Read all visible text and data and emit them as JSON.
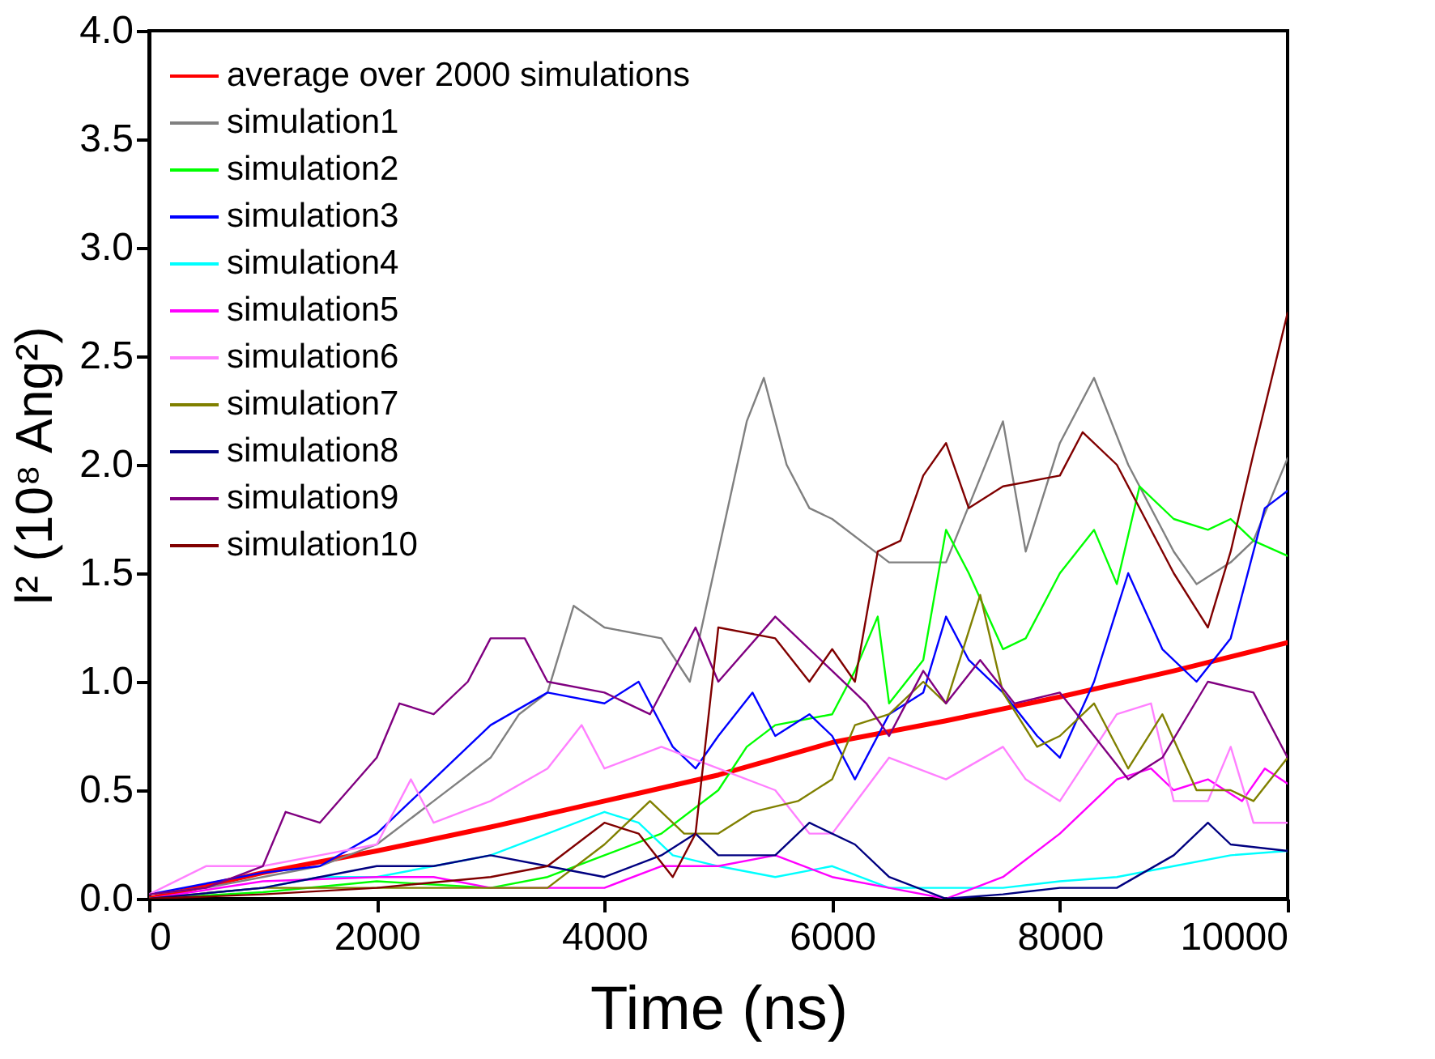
{
  "chart_data": {
    "type": "line",
    "xlabel": "Time (ns)",
    "ylabel": "l² (10⁸ Ang²)",
    "xlim": [
      0,
      10000
    ],
    "xticks": [
      0,
      2000,
      4000,
      6000,
      8000,
      10000
    ],
    "ylim": [
      0,
      4.0
    ],
    "yticks": [
      {
        "value": 0,
        "label": "0.0"
      },
      {
        "value": 0.5,
        "label": "0.5"
      },
      {
        "value": 1,
        "label": "1.0"
      },
      {
        "value": 1.5,
        "label": "1.5"
      },
      {
        "value": 2,
        "label": "2.0"
      },
      {
        "value": 2.5,
        "label": "2.5"
      },
      {
        "value": 3,
        "label": "3.0"
      },
      {
        "value": 3.5,
        "label": "3.5"
      },
      {
        "value": 4,
        "label": "4.0"
      }
    ],
    "grid": false,
    "legend": "top left",
    "marker": "none",
    "line_style": "solid",
    "series": [
      {
        "name": "average over 2000 simulations",
        "color": "#ff0000",
        "x": [
          0,
          1000,
          2000,
          3000,
          4000,
          5000,
          6000,
          7000,
          8000,
          9000,
          10000
        ],
        "values": [
          0,
          0.12,
          0.22,
          0.33,
          0.45,
          0.57,
          0.72,
          0.82,
          0.93,
          1.05,
          1.18
        ]
      },
      {
        "name": "simulation1",
        "color": "#808080",
        "x": [
          0,
          500,
          1000,
          1500,
          2000,
          2500,
          3000,
          3250,
          3500,
          3730,
          4000,
          4500,
          4750,
          5000,
          5250,
          5400,
          5600,
          5800,
          6000,
          6500,
          7000,
          7500,
          7700,
          8000,
          8300,
          8600,
          9000,
          9200,
          9500,
          9700,
          10000
        ],
        "values": [
          0.02,
          0.05,
          0.1,
          0.15,
          0.25,
          0.45,
          0.65,
          0.85,
          0.95,
          1.35,
          1.25,
          1.2,
          1.0,
          1.6,
          2.2,
          2.4,
          2.0,
          1.8,
          1.75,
          1.55,
          1.55,
          2.2,
          1.6,
          2.1,
          2.4,
          2.0,
          1.6,
          1.45,
          1.55,
          1.65,
          2.03
        ]
      },
      {
        "name": "simulation2",
        "color": "#00ff00",
        "x": [
          0,
          1000,
          2000,
          3000,
          3500,
          4000,
          4500,
          5000,
          5250,
          5500,
          6000,
          6200,
          6400,
          6500,
          6800,
          7000,
          7200,
          7500,
          7700,
          8000,
          8300,
          8500,
          8700,
          9000,
          9300,
          9500,
          9700,
          10000
        ],
        "values": [
          0,
          0.03,
          0.08,
          0.05,
          0.1,
          0.2,
          0.3,
          0.5,
          0.7,
          0.8,
          0.85,
          1.05,
          1.3,
          0.9,
          1.1,
          1.7,
          1.5,
          1.15,
          1.2,
          1.5,
          1.7,
          1.45,
          1.9,
          1.75,
          1.7,
          1.75,
          1.65,
          1.58
        ]
      },
      {
        "name": "simulation3",
        "color": "#0000ff",
        "x": [
          0,
          1000,
          1500,
          2000,
          2500,
          3000,
          3500,
          4000,
          4300,
          4600,
          4800,
          5000,
          5300,
          5500,
          5800,
          6000,
          6200,
          6500,
          6800,
          7000,
          7200,
          7500,
          7800,
          8000,
          8300,
          8600,
          8900,
          9200,
          9500,
          9800,
          10000
        ],
        "values": [
          0.02,
          0.12,
          0.15,
          0.3,
          0.55,
          0.8,
          0.95,
          0.9,
          1.0,
          0.7,
          0.6,
          0.75,
          0.95,
          0.75,
          0.85,
          0.75,
          0.55,
          0.85,
          0.95,
          1.3,
          1.1,
          0.95,
          0.75,
          0.65,
          1.0,
          1.5,
          1.15,
          1.0,
          1.2,
          1.8,
          1.88
        ]
      },
      {
        "name": "simulation4",
        "color": "#00ffff",
        "x": [
          0,
          1000,
          1500,
          2000,
          2500,
          3000,
          3500,
          4000,
          4300,
          4600,
          5000,
          5500,
          6000,
          6500,
          7000,
          7500,
          8000,
          8500,
          9000,
          9500,
          10000
        ],
        "values": [
          0,
          0.05,
          0.1,
          0.1,
          0.15,
          0.2,
          0.3,
          0.4,
          0.35,
          0.2,
          0.15,
          0.1,
          0.15,
          0.05,
          0.05,
          0.05,
          0.08,
          0.1,
          0.15,
          0.2,
          0.22
        ]
      },
      {
        "name": "simulation5",
        "color": "#ff00ff",
        "x": [
          0,
          1000,
          2000,
          2500,
          3000,
          3500,
          4000,
          4500,
          5000,
          5500,
          6000,
          6500,
          7000,
          7500,
          8000,
          8500,
          8800,
          9000,
          9300,
          9600,
          9800,
          10000
        ],
        "values": [
          0,
          0.08,
          0.1,
          0.1,
          0.05,
          0.05,
          0.05,
          0.15,
          0.15,
          0.2,
          0.1,
          0.05,
          0,
          0.1,
          0.3,
          0.55,
          0.6,
          0.5,
          0.55,
          0.45,
          0.6,
          0.53
        ]
      },
      {
        "name": "simulation6",
        "color": "#ff80ff",
        "x": [
          0,
          500,
          1000,
          1500,
          2000,
          2300,
          2500,
          3000,
          3500,
          3800,
          4000,
          4500,
          5000,
          5500,
          5800,
          6000,
          6500,
          7000,
          7500,
          7700,
          8000,
          8500,
          8800,
          9000,
          9300,
          9500,
          9700,
          10000
        ],
        "values": [
          0.02,
          0.15,
          0.15,
          0.2,
          0.25,
          0.55,
          0.35,
          0.45,
          0.6,
          0.8,
          0.6,
          0.7,
          0.6,
          0.5,
          0.3,
          0.3,
          0.65,
          0.55,
          0.7,
          0.55,
          0.45,
          0.85,
          0.9,
          0.45,
          0.45,
          0.7,
          0.35,
          0.35
        ]
      },
      {
        "name": "simulation7",
        "color": "#808000",
        "x": [
          0,
          1000,
          2000,
          3000,
          3500,
          4000,
          4400,
          4700,
          5000,
          5300,
          5700,
          6000,
          6200,
          6500,
          6800,
          7000,
          7300,
          7500,
          7800,
          8000,
          8300,
          8600,
          8900,
          9200,
          9500,
          9700,
          10000
        ],
        "values": [
          0,
          0.05,
          0.05,
          0.05,
          0.05,
          0.25,
          0.45,
          0.3,
          0.3,
          0.4,
          0.45,
          0.55,
          0.8,
          0.85,
          1.0,
          0.9,
          1.4,
          0.95,
          0.7,
          0.75,
          0.9,
          0.6,
          0.85,
          0.5,
          0.5,
          0.45,
          0.65
        ]
      },
      {
        "name": "simulation8",
        "color": "#000080",
        "x": [
          0,
          1000,
          1500,
          2000,
          2500,
          3000,
          3500,
          4000,
          4500,
          4800,
          5000,
          5500,
          5800,
          6200,
          6500,
          7000,
          7500,
          8000,
          8500,
          9000,
          9300,
          9500,
          10000
        ],
        "values": [
          0,
          0.05,
          0.1,
          0.15,
          0.15,
          0.2,
          0.15,
          0.1,
          0.2,
          0.3,
          0.2,
          0.2,
          0.35,
          0.25,
          0.1,
          0,
          0.02,
          0.05,
          0.05,
          0.2,
          0.35,
          0.25,
          0.22
        ]
      },
      {
        "name": "simulation9",
        "color": "#800080",
        "x": [
          0,
          500,
          1000,
          1200,
          1500,
          2000,
          2200,
          2500,
          2800,
          3000,
          3300,
          3500,
          4000,
          4400,
          4800,
          5000,
          5500,
          6000,
          6300,
          6500,
          6800,
          7000,
          7300,
          7600,
          8000,
          8300,
          8600,
          8900,
          9300,
          9700,
          10000
        ],
        "values": [
          0.02,
          0.05,
          0.15,
          0.4,
          0.35,
          0.65,
          0.9,
          0.85,
          1.0,
          1.2,
          1.2,
          1.0,
          0.95,
          0.85,
          1.25,
          1.0,
          1.3,
          1.05,
          0.9,
          0.75,
          1.05,
          0.9,
          1.1,
          0.9,
          0.95,
          0.75,
          0.55,
          0.65,
          1.0,
          0.95,
          0.65
        ]
      },
      {
        "name": "simulation10",
        "color": "#800000",
        "x": [
          0,
          1000,
          2000,
          3000,
          3500,
          4000,
          4300,
          4600,
          4800,
          5000,
          5500,
          5800,
          6000,
          6200,
          6400,
          6600,
          6800,
          7000,
          7200,
          7500,
          8000,
          8200,
          8500,
          9000,
          9300,
          9500,
          9700,
          10000
        ],
        "values": [
          0,
          0.02,
          0.05,
          0.1,
          0.15,
          0.35,
          0.3,
          0.1,
          0.3,
          1.25,
          1.2,
          1.0,
          1.15,
          1.0,
          1.6,
          1.65,
          1.95,
          2.1,
          1.8,
          1.9,
          1.95,
          2.15,
          2.0,
          1.5,
          1.25,
          1.6,
          2.05,
          2.7
        ]
      }
    ]
  }
}
